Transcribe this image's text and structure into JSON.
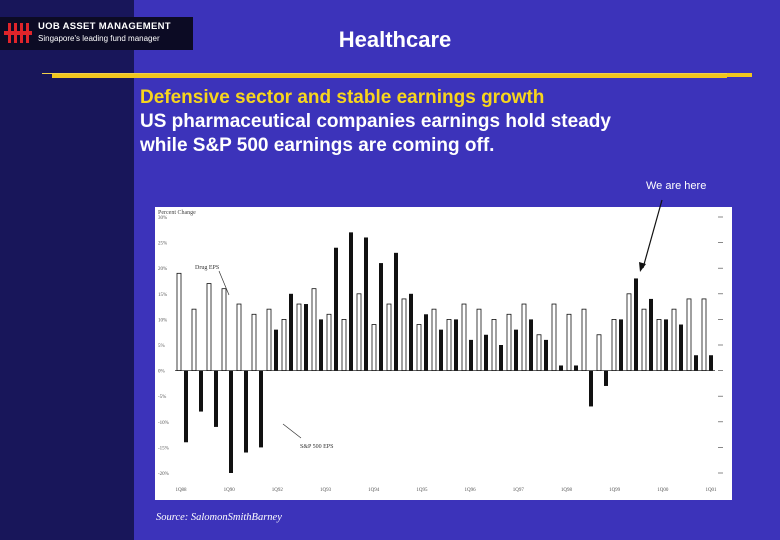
{
  "header": {
    "brand": "UOB ASSET MANAGEMENT",
    "tagline": "Singapore's leading fund manager",
    "title": "Healthcare"
  },
  "headline": {
    "line1": "Defensive sector and stable earnings growth",
    "line2": "US pharmaceutical companies earnings hold steady",
    "line3": "while S&P 500 earnings are coming off."
  },
  "callout": "We are here",
  "source": "Source: SalomonSmithBarney",
  "colors": {
    "background": "#3c33ba",
    "left_band": "#18165a",
    "accent_yellow": "#f1c61e",
    "headline_yellow": "#f7d51d"
  },
  "chart_data": {
    "type": "bar",
    "ylabel": "Percent Change",
    "ylim": [
      -20,
      30
    ],
    "yticks": [
      -20,
      -15,
      -10,
      -5,
      0,
      5,
      10,
      15,
      20,
      25,
      30
    ],
    "ytick_labels": [
      "-20%",
      "-15%",
      "-10%",
      "-5%",
      "0%",
      "5%",
      "10%",
      "15%",
      "20%",
      "25%",
      "30%"
    ],
    "xtick_labels": [
      "1Q88",
      "1Q90",
      "1Q92",
      "1Q93",
      "1Q94",
      "1Q95",
      "1Q96",
      "1Q97",
      "1Q98",
      "1Q99",
      "1Q00",
      "1Q01"
    ],
    "grid": false,
    "annotations": [
      "Drug EPS",
      "S&P 500 EPS"
    ],
    "series": [
      {
        "name": "Drug EPS",
        "style": "hollow",
        "values": [
          19,
          12,
          17,
          16,
          13,
          11,
          12,
          10,
          13,
          16,
          11,
          10,
          15,
          9,
          13,
          14,
          9,
          12,
          10,
          13,
          12,
          10,
          11,
          13,
          7,
          13,
          11,
          12,
          7,
          10,
          15,
          12,
          10,
          12,
          14,
          14
        ]
      },
      {
        "name": "S&P 500 EPS",
        "style": "filled",
        "values": [
          -14,
          -8,
          -11,
          -20,
          -16,
          -15,
          8,
          15,
          13,
          10,
          24,
          27,
          26,
          21,
          23,
          15,
          11,
          8,
          10,
          6,
          7,
          5,
          8,
          10,
          6,
          1,
          1,
          -7,
          -3,
          10,
          18,
          14,
          10,
          9,
          3,
          3
        ]
      }
    ]
  }
}
